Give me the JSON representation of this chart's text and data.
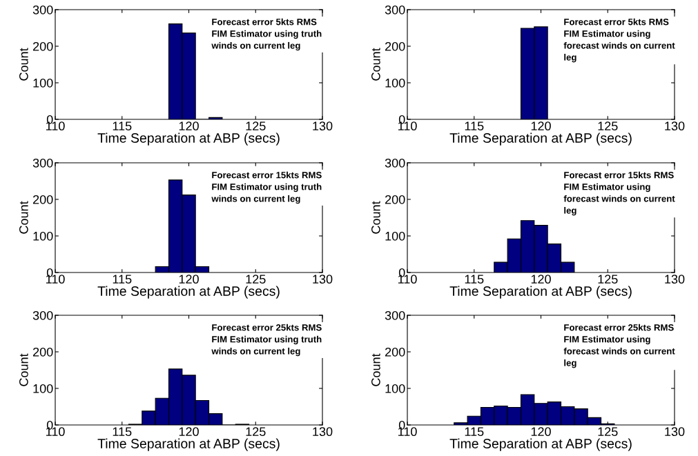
{
  "chart_data": [
    {
      "type": "histogram",
      "bins": [
        118.5,
        119.5,
        120.5,
        121.5,
        122.5
      ],
      "values": [
        261,
        236,
        0,
        5
      ],
      "color": "#000080",
      "xlabel": "Time Separation at ABP (secs)",
      "ylabel": "Count",
      "xlim": [
        110,
        130
      ],
      "xticks": [
        110,
        115,
        120,
        125,
        130
      ],
      "ylim": [
        0,
        300
      ],
      "yticks": [
        0,
        100,
        200,
        300
      ],
      "grid": false,
      "annotations": [
        "Forecast error 5kts RMS\nFIM Estimator using truth\nwinds on current leg"
      ]
    },
    {
      "type": "histogram",
      "bins": [
        118.5,
        119.5,
        120.5
      ],
      "values": [
        249,
        253
      ],
      "color": "#000080",
      "xlabel": "Time Separation at ABP (secs)",
      "ylabel": "Count",
      "xlim": [
        110,
        130
      ],
      "xticks": [
        110,
        115,
        120,
        125,
        130
      ],
      "ylim": [
        0,
        300
      ],
      "yticks": [
        0,
        100,
        200,
        300
      ],
      "grid": false,
      "annotations": [
        "Forecast error 5kts RMS\nFIM Estimator using\nforecast winds on current\nleg"
      ]
    },
    {
      "type": "histogram",
      "bins": [
        117.5,
        118.5,
        119.5,
        120.5,
        121.5
      ],
      "values": [
        16,
        253,
        212,
        16
      ],
      "color": "#000080",
      "xlabel": "Time Separation at ABP (secs)",
      "ylabel": "Count",
      "xlim": [
        110,
        130
      ],
      "xticks": [
        110,
        115,
        120,
        125,
        130
      ],
      "ylim": [
        0,
        300
      ],
      "yticks": [
        0,
        100,
        200,
        300
      ],
      "grid": false,
      "annotations": [
        "Forecast error 15kts RMS\nFIM Estimator using truth\nwinds on current leg"
      ]
    },
    {
      "type": "histogram",
      "bins": [
        116.5,
        117.5,
        118.5,
        119.5,
        120.5,
        121.5,
        122.5
      ],
      "values": [
        28,
        92,
        142,
        129,
        78,
        28
      ],
      "color": "#000080",
      "xlabel": "Time Separation at ABP (secs)",
      "ylabel": "Count",
      "xlim": [
        110,
        130
      ],
      "xticks": [
        110,
        115,
        120,
        125,
        130
      ],
      "ylim": [
        0,
        300
      ],
      "yticks": [
        0,
        100,
        200,
        300
      ],
      "grid": false,
      "annotations": [
        "Forecast error 15kts RMS\nFIM Estimator using\nforecast winds on current\nleg"
      ]
    },
    {
      "type": "histogram",
      "bins": [
        115.5,
        116.5,
        117.5,
        118.5,
        119.5,
        120.5,
        121.5,
        122.5,
        123.5,
        124.5
      ],
      "values": [
        2,
        38,
        73,
        153,
        136,
        67,
        31,
        0,
        2
      ],
      "color": "#000080",
      "xlabel": "Time Separation at ABP (secs)",
      "ylabel": "Count",
      "xlim": [
        110,
        130
      ],
      "xticks": [
        110,
        115,
        120,
        125,
        130
      ],
      "ylim": [
        0,
        300
      ],
      "yticks": [
        0,
        100,
        200,
        300
      ],
      "grid": false,
      "annotations": [
        "Forecast error 25kts RMS\nFIM Estimator using truth\nwinds on current leg"
      ]
    },
    {
      "type": "histogram",
      "bins": [
        113.5,
        114.5,
        115.5,
        116.5,
        117.5,
        118.5,
        119.5,
        120.5,
        121.5,
        122.5,
        123.5,
        124.5,
        125.5
      ],
      "values": [
        6,
        24,
        48,
        52,
        48,
        83,
        59,
        63,
        50,
        44,
        20,
        3
      ],
      "color": "#000080",
      "xlabel": "Time Separation at ABP (secs)",
      "ylabel": "Count",
      "xlim": [
        110,
        130
      ],
      "xticks": [
        110,
        115,
        120,
        125,
        130
      ],
      "ylim": [
        0,
        300
      ],
      "yticks": [
        0,
        100,
        200,
        300
      ],
      "grid": false,
      "annotations": [
        "Forecast error 25kts RMS\nFIM Estimator using\nforecast winds on current\nleg"
      ]
    }
  ]
}
